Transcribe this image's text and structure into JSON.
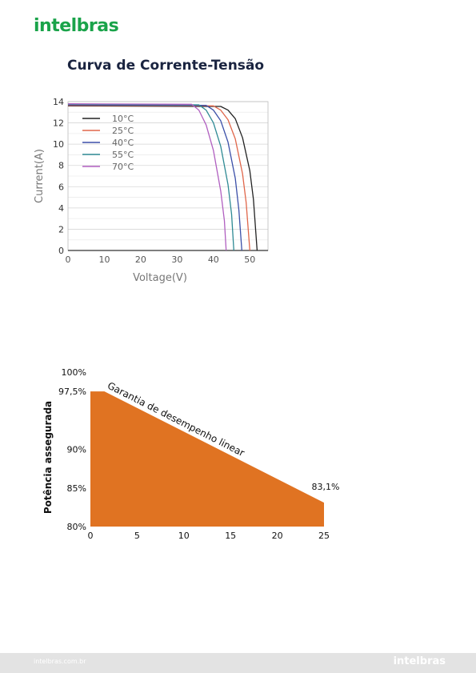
{
  "brand": {
    "logo_text": "intelbras",
    "footer_url": "intelbras.com.br",
    "accent": "#1aa34a"
  },
  "iv_section": {
    "title": "Curva de Corrente-Tensão"
  },
  "chart_data": [
    {
      "type": "line",
      "xlabel": "Voltage(V)",
      "ylabel": "Current(A)",
      "xlim": [
        0,
        55
      ],
      "ylim": [
        0,
        14
      ],
      "xticks": [
        "0",
        "10",
        "20",
        "30",
        "40",
        "50"
      ],
      "yticks": [
        "0",
        "2",
        "4",
        "6",
        "8",
        "10",
        "12",
        "14"
      ],
      "grid": true,
      "legend": "top-left",
      "series": [
        {
          "name": "10°C",
          "color": "#222222",
          "isc": 13.6,
          "voc": 52,
          "knee": 44,
          "pts": [
            [
              0,
              13.6
            ],
            [
              42,
              13.55
            ],
            [
              44,
              13.2
            ],
            [
              46,
              12.4
            ],
            [
              48,
              10.6
            ],
            [
              50,
              7.5
            ],
            [
              51,
              4.8
            ],
            [
              52,
              0
            ]
          ]
        },
        {
          "name": "25°C",
          "color": "#e0664a",
          "isc": 13.65,
          "voc": 50,
          "knee": 42,
          "pts": [
            [
              0,
              13.65
            ],
            [
              40,
              13.6
            ],
            [
              42,
              13.2
            ],
            [
              44,
              12.3
            ],
            [
              46,
              10.5
            ],
            [
              48,
              7.2
            ],
            [
              49,
              4.5
            ],
            [
              50,
              0
            ]
          ]
        },
        {
          "name": "40°C",
          "color": "#3b4fa8",
          "isc": 13.7,
          "voc": 47.8,
          "knee": 40,
          "pts": [
            [
              0,
              13.7
            ],
            [
              38,
              13.65
            ],
            [
              40,
              13.2
            ],
            [
              42,
              12.2
            ],
            [
              44,
              10.2
            ],
            [
              46,
              6.8
            ],
            [
              47,
              3.8
            ],
            [
              47.8,
              0
            ]
          ]
        },
        {
          "name": "55°C",
          "color": "#2e8a94",
          "isc": 13.75,
          "voc": 45.6,
          "knee": 38,
          "pts": [
            [
              0,
              13.75
            ],
            [
              36,
              13.7
            ],
            [
              38,
              13.2
            ],
            [
              40,
              12.0
            ],
            [
              42,
              9.8
            ],
            [
              44,
              6.2
            ],
            [
              45,
              3.4
            ],
            [
              45.6,
              0
            ]
          ]
        },
        {
          "name": "70°C",
          "color": "#b05fc0",
          "isc": 13.8,
          "voc": 43.5,
          "knee": 36,
          "pts": [
            [
              0,
              13.8
            ],
            [
              34,
              13.75
            ],
            [
              36,
              13.2
            ],
            [
              38,
              11.8
            ],
            [
              40,
              9.4
            ],
            [
              42,
              5.6
            ],
            [
              43,
              2.8
            ],
            [
              43.5,
              0
            ]
          ]
        }
      ]
    },
    {
      "type": "area",
      "ylabel": "Potência assegurada",
      "xlim": [
        0,
        25
      ],
      "ylim": [
        80,
        100
      ],
      "xticks": [
        "0",
        "5",
        "10",
        "15",
        "20",
        "25"
      ],
      "yticks": [
        {
          "value": 100,
          "label": "100%"
        },
        {
          "value": 97.5,
          "label": "97,5%"
        },
        {
          "value": 90,
          "label": "90%"
        },
        {
          "value": 85,
          "label": "85%"
        },
        {
          "value": 80,
          "label": "80%"
        }
      ],
      "color": "#e07322",
      "annotation": "Garantia de desempenho linear",
      "end_label": "83,1%",
      "points": [
        [
          0,
          97.5
        ],
        [
          1.5,
          97.5
        ],
        [
          25,
          83.1
        ]
      ]
    }
  ]
}
